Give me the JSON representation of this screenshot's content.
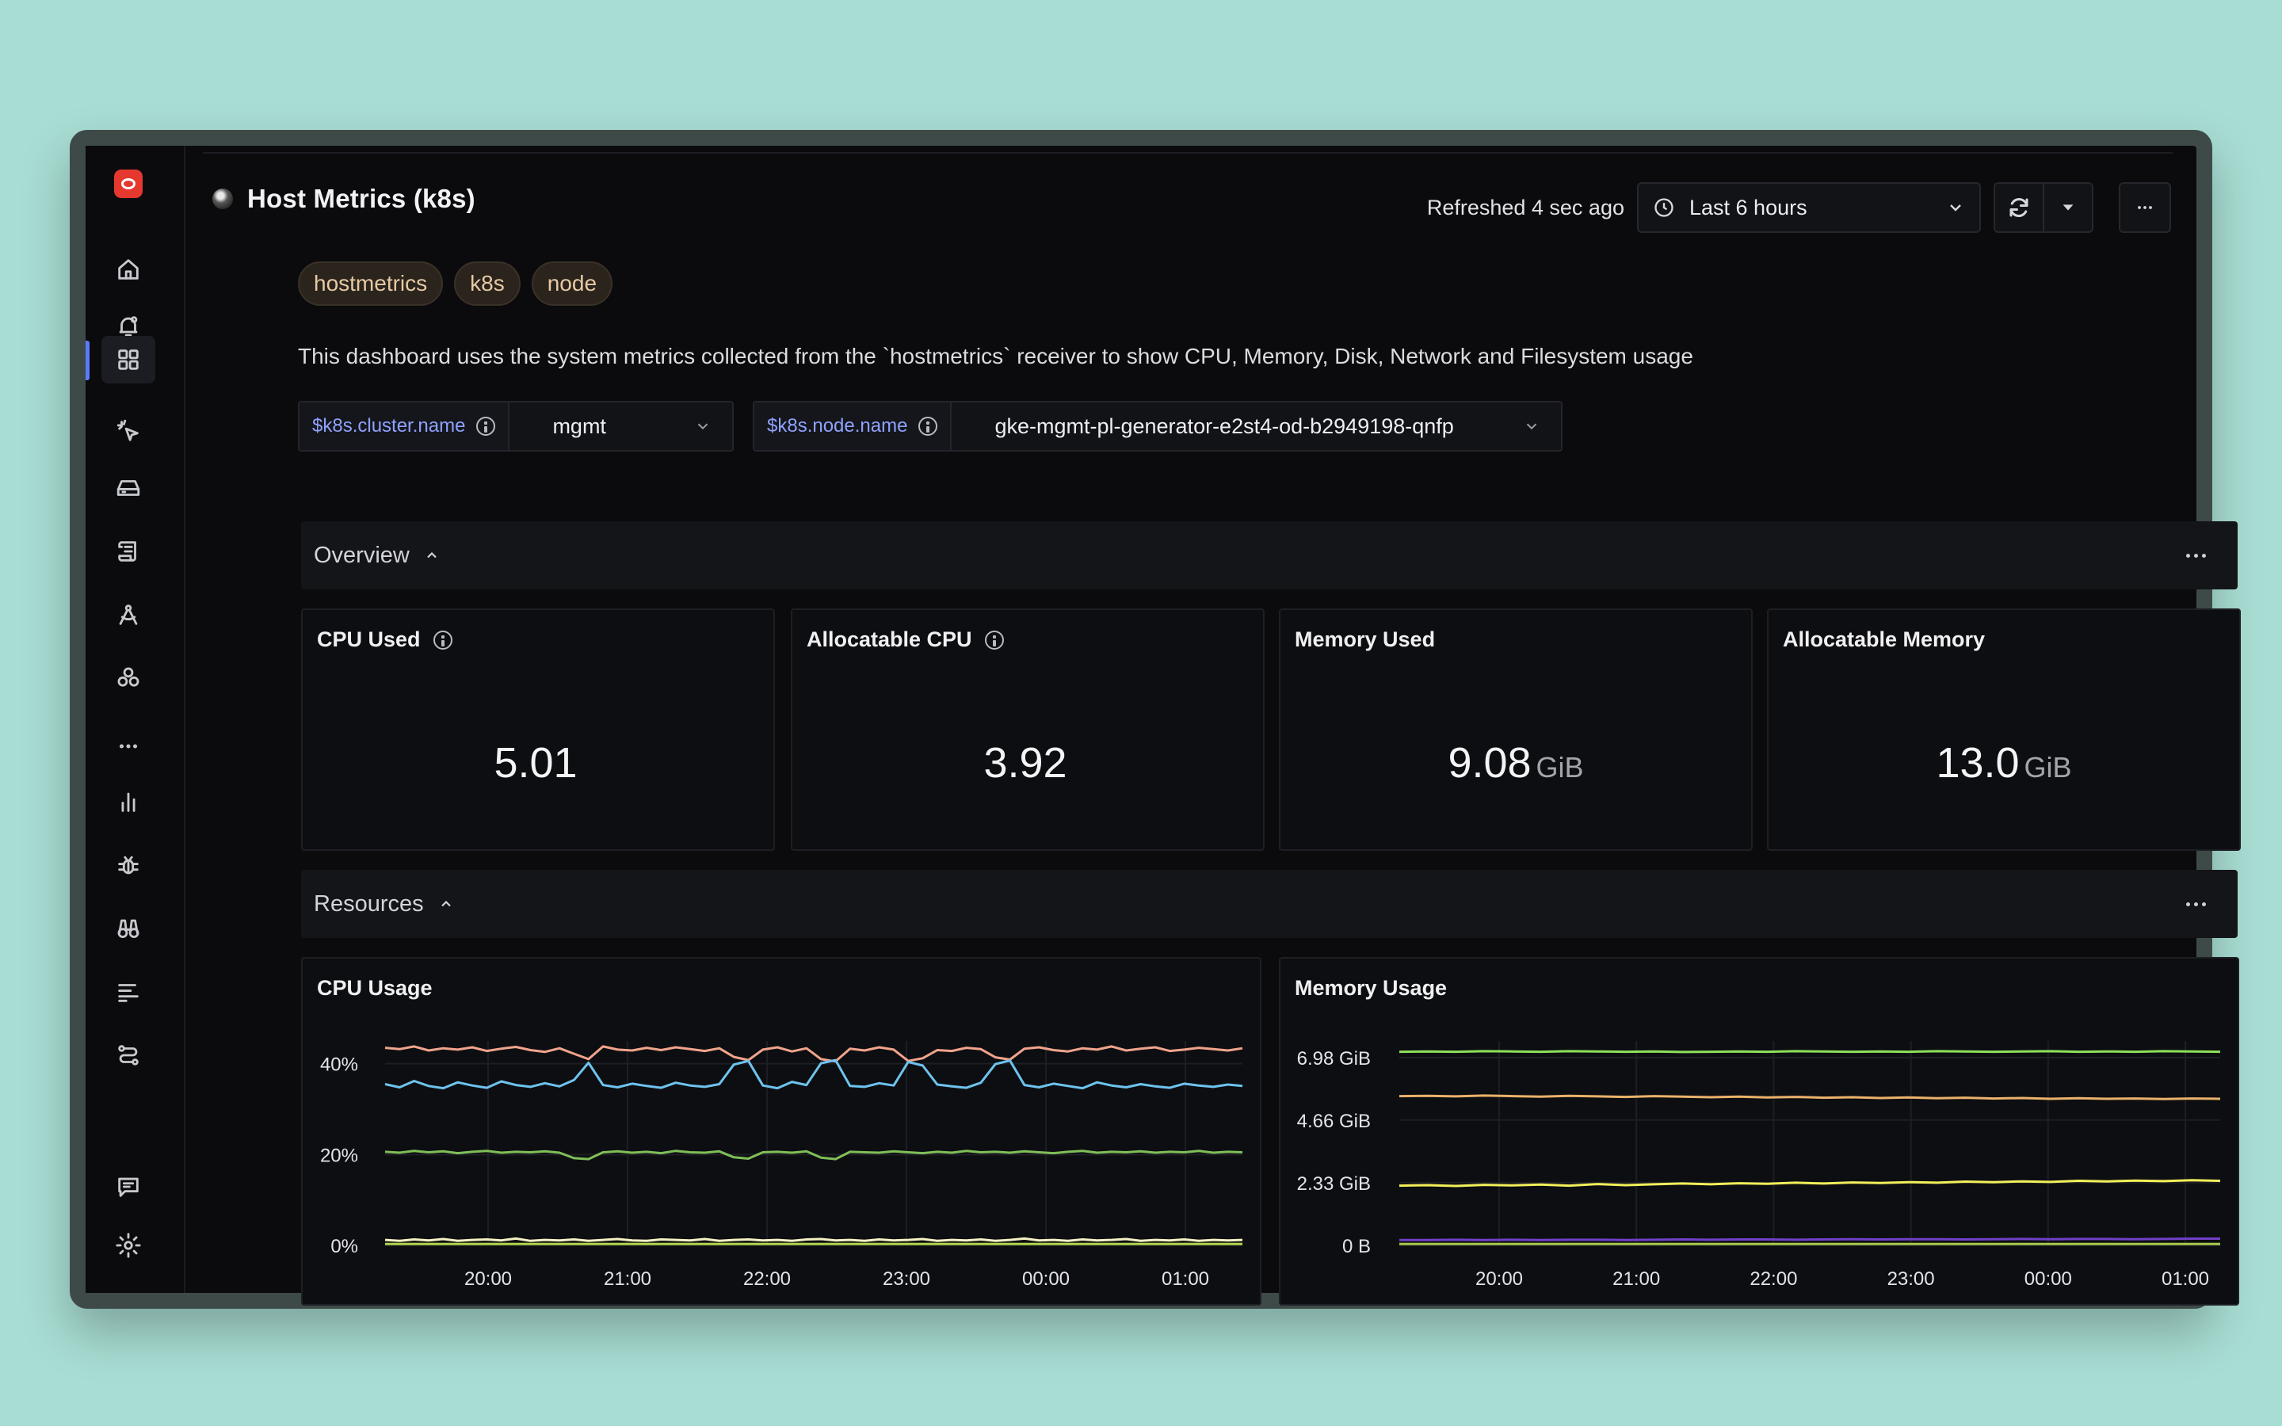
{
  "app": {
    "title": "Host Metrics (k8s)",
    "refreshed": "Refreshed 4 sec ago",
    "time_range": "Last 6 hours"
  },
  "sidebar": {
    "items": [
      {
        "icon": "home-icon"
      },
      {
        "icon": "bell-icon"
      },
      {
        "icon": "dashboards-icon",
        "active": true
      },
      {
        "icon": "cursor-click-icon"
      },
      {
        "icon": "storage-icon"
      },
      {
        "icon": "logs-icon"
      },
      {
        "icon": "compass-icon"
      },
      {
        "icon": "cluster-icon"
      },
      {
        "icon": "more-icon"
      },
      {
        "icon": "chart-icon"
      },
      {
        "icon": "bug-icon"
      },
      {
        "icon": "binoculars-icon"
      },
      {
        "icon": "traces-icon"
      },
      {
        "icon": "pipelines-icon"
      },
      {
        "icon": "chat-icon"
      },
      {
        "icon": "settings-icon"
      }
    ]
  },
  "tags": [
    "hostmetrics",
    "k8s",
    "node"
  ],
  "description": "This dashboard uses the system metrics collected from the `hostmetrics` receiver to show CPU, Memory, Disk, Network and Filesystem usage",
  "variables": [
    {
      "name": "$k8s.cluster.name",
      "value": "mgmt"
    },
    {
      "name": "$k8s.node.name",
      "value": "gke-mgmt-pl-generator-e2st4-od-b2949198-qnfp"
    }
  ],
  "sections": {
    "overview": "Overview",
    "resources": "Resources"
  },
  "stats": [
    {
      "title": "CPU Used",
      "value": "5.01",
      "unit": ""
    },
    {
      "title": "Allocatable CPU",
      "value": "3.92",
      "unit": ""
    },
    {
      "title": "Memory Used",
      "value": "9.08",
      "unit": "GiB"
    },
    {
      "title": "Allocatable Memory",
      "value": "13.0",
      "unit": "GiB"
    }
  ],
  "panels": {
    "cpu": "CPU Usage",
    "memory": "Memory Usage"
  },
  "chart_data": [
    {
      "type": "line",
      "title": "CPU Usage",
      "x_ticks": [
        "20:00",
        "21:00",
        "22:00",
        "23:00",
        "00:00",
        "01:00"
      ],
      "y_ticks": [
        "0%",
        "20%",
        "40%"
      ],
      "ylim": [
        0,
        45
      ],
      "series": [
        {
          "color": "#f0a48c",
          "values": [
            43.5,
            43.2,
            43.8,
            42.9,
            43.4,
            43.1,
            43.6,
            42.8,
            43.3,
            43.7,
            43.0,
            42.6,
            43.4,
            42.2,
            41.0,
            43.8,
            43.1,
            42.9,
            43.5,
            43.0,
            43.6,
            43.2,
            42.8,
            43.4,
            41.5,
            40.8,
            43.1,
            43.6,
            42.7,
            43.4,
            41.0,
            40.5,
            43.3,
            42.9,
            43.6,
            43.1,
            40.6,
            41.2,
            43.0,
            42.8,
            43.5,
            43.2,
            41.4,
            40.9,
            43.3,
            43.6,
            43.0,
            42.7,
            43.4,
            43.1,
            43.8,
            42.9,
            43.3,
            43.6,
            42.8,
            43.1,
            43.5,
            43.2,
            42.9,
            43.4
          ]
        },
        {
          "color": "#6ec3ee",
          "values": [
            35.5,
            34.8,
            36.2,
            35.1,
            34.6,
            35.9,
            35.2,
            34.7,
            36.1,
            35.3,
            34.9,
            35.7,
            35.0,
            36.4,
            40.2,
            35.3,
            34.8,
            35.6,
            35.1,
            34.7,
            35.8,
            35.2,
            34.9,
            35.5,
            39.8,
            40.6,
            35.2,
            34.6,
            36.0,
            35.3,
            40.1,
            40.8,
            35.1,
            34.9,
            35.7,
            35.2,
            40.4,
            39.6,
            35.4,
            35.0,
            34.7,
            35.8,
            39.9,
            40.7,
            35.3,
            34.8,
            35.6,
            35.1,
            34.6,
            35.9,
            35.2,
            34.8,
            35.5,
            35.0,
            34.7,
            35.6,
            35.2,
            34.9,
            35.4,
            35.1
          ]
        },
        {
          "color": "#7fbf58",
          "values": [
            20.6,
            20.4,
            20.8,
            20.5,
            20.7,
            20.3,
            20.6,
            20.8,
            20.4,
            20.6,
            20.5,
            20.7,
            20.4,
            19.2,
            19.0,
            20.5,
            20.7,
            20.4,
            20.6,
            20.3,
            20.8,
            20.5,
            20.4,
            20.7,
            19.4,
            19.1,
            20.5,
            20.6,
            20.4,
            20.7,
            19.3,
            19.0,
            20.6,
            20.5,
            20.4,
            20.7,
            20.5,
            20.3,
            20.6,
            20.4,
            20.8,
            20.5,
            20.6,
            20.4,
            20.7,
            20.5,
            20.3,
            20.6,
            20.8,
            20.4,
            20.6,
            20.5,
            20.7,
            20.4,
            20.6,
            20.5,
            20.8,
            20.4,
            20.6,
            20.5
          ]
        },
        {
          "color": "#f3f0c2",
          "values": [
            1.2,
            1.0,
            1.3,
            1.1,
            1.4,
            1.0,
            1.2,
            1.3,
            1.1,
            1.5,
            1.0,
            1.2,
            1.1,
            1.3,
            1.0,
            1.2,
            1.4,
            1.1,
            1.0,
            1.3,
            1.2,
            1.1,
            1.4,
            1.0,
            1.2,
            1.3,
            1.1,
            1.2,
            1.0,
            1.3,
            1.4,
            1.1,
            1.2,
            1.0,
            1.3,
            1.1,
            1.2,
            1.4,
            1.0,
            1.2,
            1.1,
            1.3,
            1.0,
            1.2,
            1.5,
            1.1,
            1.2,
            1.0,
            1.3,
            1.1,
            1.2,
            1.4,
            1.0,
            1.2,
            1.1,
            1.3,
            1.0,
            1.2,
            1.1,
            1.2
          ]
        },
        {
          "color": "#b2d44a",
          "values": [
            0.3,
            0.3,
            0.3,
            0.3,
            0.3,
            0.3,
            0.3,
            0.3,
            0.3,
            0.3,
            0.3,
            0.3,
            0.3,
            0.3,
            0.3,
            0.3,
            0.3,
            0.3,
            0.3,
            0.3,
            0.3,
            0.3,
            0.3,
            0.3,
            0.3,
            0.3,
            0.3,
            0.3,
            0.3,
            0.3,
            0.3,
            0.3,
            0.3,
            0.3,
            0.3,
            0.3,
            0.3,
            0.3,
            0.3,
            0.3,
            0.3,
            0.3,
            0.3,
            0.3,
            0.3,
            0.3,
            0.3,
            0.3,
            0.3,
            0.3,
            0.3,
            0.3,
            0.3,
            0.3,
            0.3,
            0.3,
            0.3,
            0.3,
            0.3,
            0.3
          ]
        }
      ]
    },
    {
      "type": "line",
      "title": "Memory Usage",
      "x_ticks": [
        "20:00",
        "21:00",
        "22:00",
        "23:00",
        "00:00",
        "01:00"
      ],
      "y_ticks": [
        "0 B",
        "2.33 GiB",
        "4.66 GiB",
        "6.98 GiB"
      ],
      "ylim": [
        0,
        7.6
      ],
      "series": [
        {
          "color": "#8ee05a",
          "values": [
            7.2,
            7.21,
            7.2,
            7.22,
            7.21,
            7.2,
            7.22,
            7.21,
            7.2,
            7.21,
            7.19,
            7.2,
            7.21,
            7.2,
            7.22,
            7.21,
            7.2,
            7.21,
            7.2,
            7.22,
            7.21,
            7.2,
            7.21,
            7.22,
            7.2,
            7.21,
            7.2,
            7.22,
            7.21,
            7.2
          ]
        },
        {
          "color": "#eab26a",
          "values": [
            5.55,
            5.56,
            5.54,
            5.57,
            5.55,
            5.53,
            5.56,
            5.54,
            5.52,
            5.55,
            5.53,
            5.51,
            5.53,
            5.5,
            5.52,
            5.49,
            5.51,
            5.48,
            5.5,
            5.47,
            5.49,
            5.46,
            5.48,
            5.45,
            5.47,
            5.45,
            5.46,
            5.44,
            5.46,
            5.45
          ]
        },
        {
          "color": "#f2ef5a",
          "values": [
            2.22,
            2.24,
            2.21,
            2.25,
            2.23,
            2.26,
            2.22,
            2.28,
            2.24,
            2.27,
            2.3,
            2.27,
            2.31,
            2.29,
            2.33,
            2.3,
            2.34,
            2.32,
            2.35,
            2.33,
            2.37,
            2.35,
            2.38,
            2.36,
            2.4,
            2.38,
            2.41,
            2.39,
            2.42,
            2.4
          ]
        },
        {
          "color": "#7040c8",
          "values": [
            0.2,
            0.2,
            0.21,
            0.2,
            0.21,
            0.2,
            0.21,
            0.21,
            0.2,
            0.21,
            0.22,
            0.21,
            0.22,
            0.22,
            0.21,
            0.22,
            0.23,
            0.22,
            0.23,
            0.23,
            0.22,
            0.23,
            0.24,
            0.23,
            0.24,
            0.24,
            0.23,
            0.24,
            0.25,
            0.25
          ]
        },
        {
          "color": "#a8c84a",
          "values": [
            0.05,
            0.05,
            0.05,
            0.05,
            0.05,
            0.05,
            0.05,
            0.05,
            0.05,
            0.05,
            0.05,
            0.05,
            0.05,
            0.05,
            0.05,
            0.05,
            0.05,
            0.05,
            0.05,
            0.05,
            0.05,
            0.05,
            0.05,
            0.05,
            0.05,
            0.05,
            0.05,
            0.05,
            0.05,
            0.05
          ]
        }
      ]
    }
  ]
}
